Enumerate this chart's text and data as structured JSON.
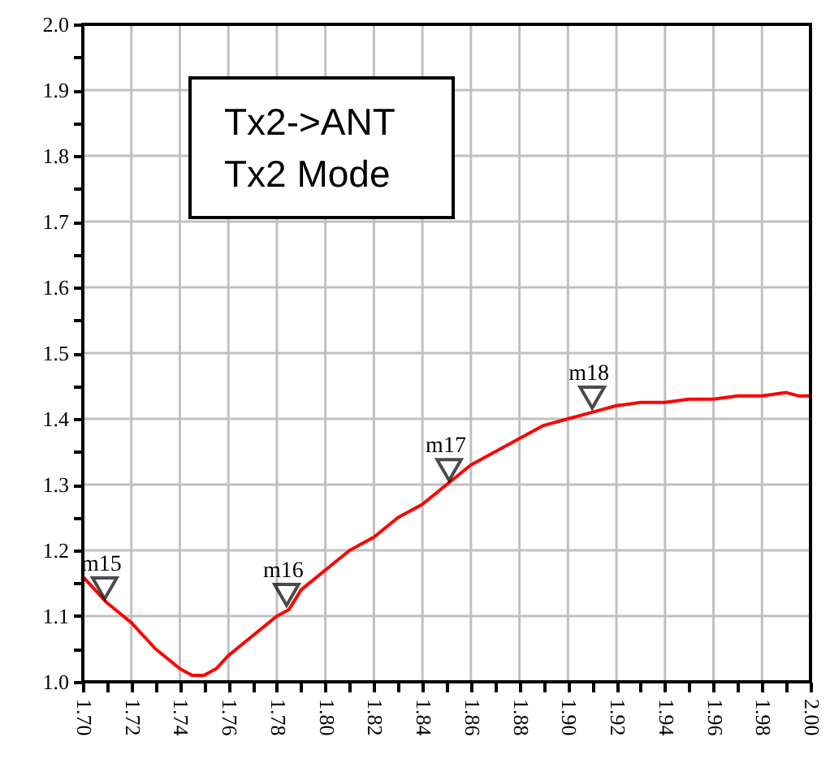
{
  "chart_data": {
    "type": "line",
    "x": [
      1.7,
      1.705,
      1.71,
      1.72,
      1.73,
      1.74,
      1.745,
      1.75,
      1.755,
      1.76,
      1.77,
      1.78,
      1.785,
      1.79,
      1.8,
      1.81,
      1.82,
      1.83,
      1.84,
      1.85,
      1.86,
      1.87,
      1.88,
      1.89,
      1.9,
      1.91,
      1.92,
      1.93,
      1.94,
      1.95,
      1.96,
      1.97,
      1.98,
      1.99,
      1.995,
      2.0
    ],
    "series": [
      {
        "color": "#ff0000",
        "values": [
          1.16,
          1.14,
          1.12,
          1.09,
          1.05,
          1.02,
          1.01,
          1.01,
          1.02,
          1.04,
          1.07,
          1.1,
          1.11,
          1.14,
          1.17,
          1.2,
          1.22,
          1.25,
          1.27,
          1.3,
          1.33,
          1.35,
          1.37,
          1.39,
          1.4,
          1.41,
          1.42,
          1.425,
          1.425,
          1.43,
          1.43,
          1.435,
          1.435,
          1.44,
          1.435,
          1.435
        ]
      }
    ],
    "xlim": [
      1.7,
      2.0
    ],
    "ylim": [
      1.0,
      2.0
    ],
    "xticks": [
      {
        "value": 1.7,
        "label": "1.70"
      },
      {
        "value": 1.71,
        "label": null
      },
      1.72,
      {
        "value": 1.73,
        "label": null
      },
      1.74,
      {
        "value": 1.75,
        "label": null
      },
      1.76,
      {
        "value": 1.77,
        "label": null
      },
      1.78,
      {
        "value": 1.79,
        "label": null
      },
      {
        "value": 1.8,
        "label": "1.80"
      },
      {
        "value": 1.81,
        "label": null
      },
      1.82,
      {
        "value": 1.83,
        "label": null
      },
      1.84,
      {
        "value": 1.85,
        "label": null
      },
      1.86,
      {
        "value": 1.87,
        "label": null
      },
      1.88,
      {
        "value": 1.89,
        "label": null
      },
      {
        "value": 1.9,
        "label": "1.90"
      },
      {
        "value": 1.91,
        "label": null
      },
      1.92,
      {
        "value": 1.93,
        "label": null
      },
      1.94,
      {
        "value": 1.95,
        "label": null
      },
      1.96,
      {
        "value": 1.97,
        "label": null
      },
      1.98,
      {
        "value": 1.99,
        "label": null
      },
      {
        "value": 2.0,
        "label": "2.00"
      }
    ],
    "yticks": [
      {
        "value": 1.0,
        "label": "1.0"
      },
      {
        "value": 1.05,
        "label": null
      },
      1.1,
      {
        "value": 1.15,
        "label": null
      },
      1.2,
      {
        "value": 1.25,
        "label": null
      },
      1.3,
      {
        "value": 1.35,
        "label": null
      },
      1.4,
      {
        "value": 1.45,
        "label": null
      },
      1.5,
      {
        "value": 1.55,
        "label": null
      },
      1.6,
      {
        "value": 1.65,
        "label": null
      },
      1.7,
      {
        "value": 1.75,
        "label": null
      },
      1.8,
      {
        "value": 1.85,
        "label": null
      },
      1.9,
      {
        "value": 1.95,
        "label": null
      },
      {
        "value": 2.0,
        "label": "2.0"
      }
    ],
    "grid": true,
    "annotations": [
      "Tx2->ANT\nTx2 Mode",
      {
        "text": "m15",
        "x": 1.709,
        "y": 1.12
      },
      {
        "text": "m16",
        "x": 1.784,
        "y": 1.11
      },
      {
        "text": "m17",
        "x": 1.851,
        "y": 1.3
      },
      {
        "text": "m18",
        "x": 1.91,
        "y": 1.41
      }
    ]
  }
}
